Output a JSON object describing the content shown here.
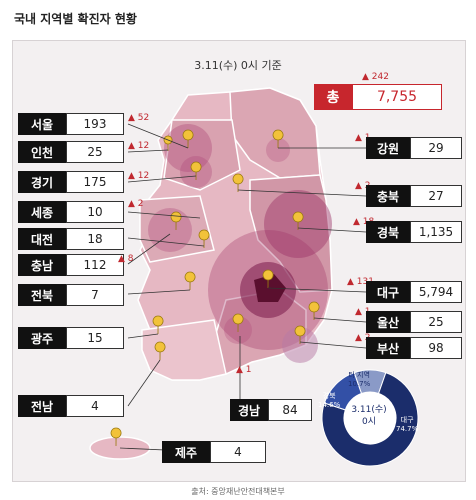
{
  "page_title": "국내 지역별 확진자 현황",
  "subtitle": "3.11(수) 0시 기준",
  "total": {
    "label": "총",
    "value": "7,755",
    "increase": "242"
  },
  "regions": [
    {
      "name": "서울",
      "value": "193",
      "increase": "52"
    },
    {
      "name": "인천",
      "value": "25",
      "increase": "12"
    },
    {
      "name": "경기",
      "value": "175",
      "increase": "12"
    },
    {
      "name": "세종",
      "value": "10",
      "increase": "2"
    },
    {
      "name": "대전",
      "value": "18",
      "increase": ""
    },
    {
      "name": "충남",
      "value": "112",
      "increase": "8"
    },
    {
      "name": "전북",
      "value": "7",
      "increase": ""
    },
    {
      "name": "광주",
      "value": "15",
      "increase": ""
    },
    {
      "name": "전남",
      "value": "4",
      "increase": ""
    },
    {
      "name": "제주",
      "value": "4",
      "increase": ""
    },
    {
      "name": "강원",
      "value": "29",
      "increase": "1"
    },
    {
      "name": "충북",
      "value": "27",
      "increase": "2"
    },
    {
      "name": "경북",
      "value": "1,135",
      "increase": "18"
    },
    {
      "name": "대구",
      "value": "5,794",
      "increase": "131"
    },
    {
      "name": "울산",
      "value": "25",
      "increase": "1"
    },
    {
      "name": "부산",
      "value": "98",
      "increase": "2"
    },
    {
      "name": "경남",
      "value": "84",
      "increase": "1"
    }
  ],
  "donut": {
    "center": [
      "3.11(수)",
      "0시"
    ],
    "segments": [
      {
        "label": "대구",
        "pct": "74.7%",
        "value": 74.7,
        "color": "#1b2d6b"
      },
      {
        "label": "경북",
        "pct": "14.6%",
        "value": 14.6,
        "color": "#3350a6"
      },
      {
        "label": "타 지역",
        "pct": "10.7%",
        "value": 10.7,
        "color": "#8a9ac7"
      }
    ]
  },
  "source": "출처: 중앙재난안전대책본부",
  "colors": {
    "accent": "#c7262d",
    "map_land": "#e8bcc6",
    "map_border": "#ffffff"
  }
}
